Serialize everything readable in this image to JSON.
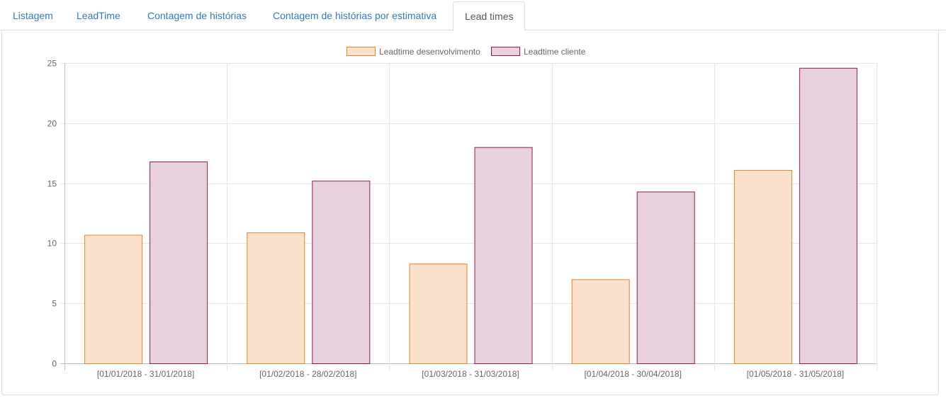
{
  "tabs": [
    {
      "label": "Listagem",
      "active": false
    },
    {
      "label": "LeadTime",
      "active": false
    },
    {
      "label": "Contagem de histórias",
      "active": false
    },
    {
      "label": "Contagem de histórias por estimativa",
      "active": false
    },
    {
      "label": "Lead times",
      "active": true
    }
  ],
  "chart_data": {
    "type": "bar",
    "title": "",
    "xlabel": "",
    "ylabel": "",
    "ylim": [
      0,
      25
    ],
    "yticks": [
      0,
      5,
      10,
      15,
      20,
      25
    ],
    "grid": true,
    "legend_position": "top-center",
    "categories": [
      "[01/01/2018 - 31/01/2018]",
      "[01/02/2018 - 28/02/2018]",
      "[01/03/2018 - 31/03/2018]",
      "[01/04/2018 - 30/04/2018]",
      "[01/05/2018 - 31/05/2018]"
    ],
    "series": [
      {
        "name": "Leadtime desenvolvimento",
        "values": [
          10.7,
          10.9,
          8.3,
          7.0,
          16.1
        ],
        "fill": "#fbe1cc",
        "stroke": "#e8822b"
      },
      {
        "name": "Leadtime cliente",
        "values": [
          16.8,
          15.2,
          18.0,
          14.3,
          24.6
        ],
        "fill": "#e8d0dd",
        "stroke": "#8e1b55"
      }
    ]
  }
}
